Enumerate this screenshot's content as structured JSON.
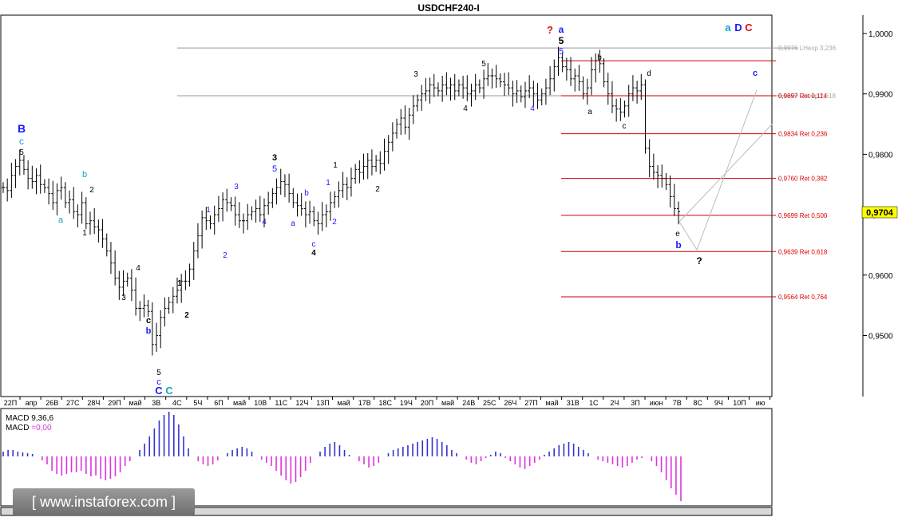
{
  "window": {
    "title": "USDCHF240-I"
  },
  "current_price_label": "0,9704",
  "watermark": "[ www.instaforex.com ]",
  "macd_label": "MACD 9,36,6",
  "macd_value_label": "MACD =0,00",
  "colors": {
    "candle": "#000000",
    "fib": "#cc0000",
    "fib_label": "#dd0000",
    "wave_black": "#000000",
    "wave_blue": "#1a1aff",
    "wave_teal": "#1aa0c8",
    "wave_red": "#dd1111",
    "macd_pos": "#3333cc",
    "macd_neg": "#dd33dd",
    "price_tag": "#ffff00",
    "grid_line": "#999999",
    "projection": "#bbbbbb"
  },
  "chart_data": {
    "type": "candlestick",
    "title": "USDCHF240-I",
    "ylim": [
      0.941,
      1.004
    ],
    "y_ticks": [
      "1,0000",
      "0,9900",
      "0,9800",
      "0,9700",
      "0,9600",
      "0,9500"
    ],
    "x_ticks": [
      "22П",
      "апр",
      "26В",
      "27С",
      "28Ч",
      "29П",
      "май",
      "3В",
      "4С",
      "5Ч",
      "6П",
      "май",
      "10В",
      "11С",
      "12Ч",
      "13П",
      "май",
      "17В",
      "18С",
      "19Ч",
      "20П",
      "май",
      "24В",
      "25С",
      "26Ч",
      "27П",
      "май",
      "31В",
      "1С",
      "2Ч",
      "3П",
      "июн",
      "7В",
      "8С",
      "9Ч",
      "10П",
      "ию"
    ],
    "close": [
      0.9745,
      0.974,
      0.9765,
      0.978,
      0.979,
      0.9775,
      0.976,
      0.9755,
      0.9765,
      0.975,
      0.9745,
      0.9735,
      0.972,
      0.974,
      0.9745,
      0.972,
      0.9725,
      0.9705,
      0.97,
      0.972,
      0.9685,
      0.969,
      0.968,
      0.9675,
      0.966,
      0.964,
      0.962,
      0.9595,
      0.958,
      0.959,
      0.9595,
      0.9575,
      0.9545,
      0.9545,
      0.955,
      0.954,
      0.9485,
      0.95,
      0.953,
      0.9545,
      0.9555,
      0.9565,
      0.9575,
      0.959,
      0.959,
      0.961,
      0.964,
      0.9665,
      0.9695,
      0.969,
      0.9685,
      0.97,
      0.971,
      0.9725,
      0.972,
      0.9715,
      0.97,
      0.969,
      0.969,
      0.97,
      0.9705,
      0.971,
      0.97,
      0.9715,
      0.972,
      0.9735,
      0.9745,
      0.9755,
      0.975,
      0.9735,
      0.972,
      0.9715,
      0.971,
      0.97,
      0.9705,
      0.969,
      0.9685,
      0.97,
      0.9705,
      0.972,
      0.973,
      0.974,
      0.975,
      0.9745,
      0.976,
      0.9775,
      0.977,
      0.978,
      0.979,
      0.978,
      0.979,
      0.9785,
      0.9805,
      0.982,
      0.9835,
      0.985,
      0.986,
      0.9845,
      0.9865,
      0.988,
      0.989,
      0.99,
      0.9905,
      0.9915,
      0.991,
      0.9905,
      0.9915,
      0.991,
      0.9915,
      0.9905,
      0.9915,
      0.991,
      0.99,
      0.9905,
      0.9915,
      0.991,
      0.9925,
      0.993,
      0.993,
      0.9925,
      0.992,
      0.9915,
      0.991,
      0.99,
      0.9905,
      0.9895,
      0.9905,
      0.991,
      0.99,
      0.989,
      0.99,
      0.991,
      0.9925,
      0.9945,
      0.996,
      0.9945,
      0.994,
      0.9925,
      0.993,
      0.992,
      0.99,
      0.991,
      0.994,
      0.9955,
      0.995,
      0.992,
      0.99,
      0.988,
      0.9875,
      0.987,
      0.988,
      0.99,
      0.991,
      0.9905,
      0.9915,
      0.981,
      0.978,
      0.977,
      0.9765,
      0.976,
      0.975,
      0.973,
      0.971,
      0.9705
    ]
  },
  "wave_labels": {
    "B": "B",
    "c": "c",
    "a": "a",
    "b": "b",
    "C": "C",
    "n1": "1",
    "n2": "2",
    "n3": "3",
    "n4": "4",
    "n5": "5",
    "d": "d",
    "e": "e",
    "q": "?",
    "D": "D"
  },
  "fib_levels": [
    {
      "value": 0.9955,
      "label": ""
    },
    {
      "value": 0.9897,
      "label": "0,9897 Ret 0,114"
    },
    {
      "value": 0.9834,
      "label": "0,9834 Ret 0,236"
    },
    {
      "value": 0.976,
      "label": "0,9760 Ret 0,382"
    },
    {
      "value": 0.9699,
      "label": "0,9699 Ret 0,500"
    },
    {
      "value": 0.9639,
      "label": "0,9639 Ret 0,618"
    },
    {
      "value": 0.9564,
      "label": "0,9564 Ret 0,764"
    }
  ],
  "grey_levels": [
    {
      "value": 0.9976,
      "label": "0,9976 LHexp 3,236"
    },
    {
      "value": 0.9897,
      "label": "0,9897 LHexp 2,618"
    }
  ]
}
